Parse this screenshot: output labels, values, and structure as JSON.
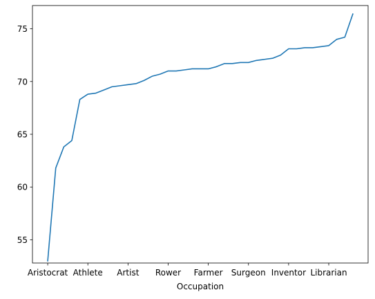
{
  "chart_data": {
    "type": "line",
    "title": "",
    "xlabel": "Occupation",
    "ylabel": "",
    "x_tick_labels": [
      "Aristocrat",
      "Athlete",
      "Artist",
      "Rower",
      "Farmer",
      "Surgeon",
      "Inventor",
      "Librarian"
    ],
    "y_ticks": [
      55,
      60,
      65,
      70,
      75
    ],
    "ylim": [
      52.8,
      77.2
    ],
    "xlim": [
      -1.9,
      39.9
    ],
    "grid": false,
    "legend": "none",
    "series": [
      {
        "color": "#1f77b4",
        "values": [
          53.0,
          61.8,
          63.8,
          64.4,
          68.3,
          68.8,
          68.9,
          69.2,
          69.5,
          69.6,
          69.7,
          69.8,
          70.1,
          70.5,
          70.7,
          71.0,
          71.0,
          71.1,
          71.2,
          71.2,
          71.2,
          71.4,
          71.7,
          71.7,
          71.8,
          71.8,
          72.0,
          72.1,
          72.2,
          72.5,
          73.1,
          73.1,
          73.2,
          73.2,
          73.3,
          73.4,
          74.0,
          74.2,
          76.4
        ]
      }
    ]
  }
}
